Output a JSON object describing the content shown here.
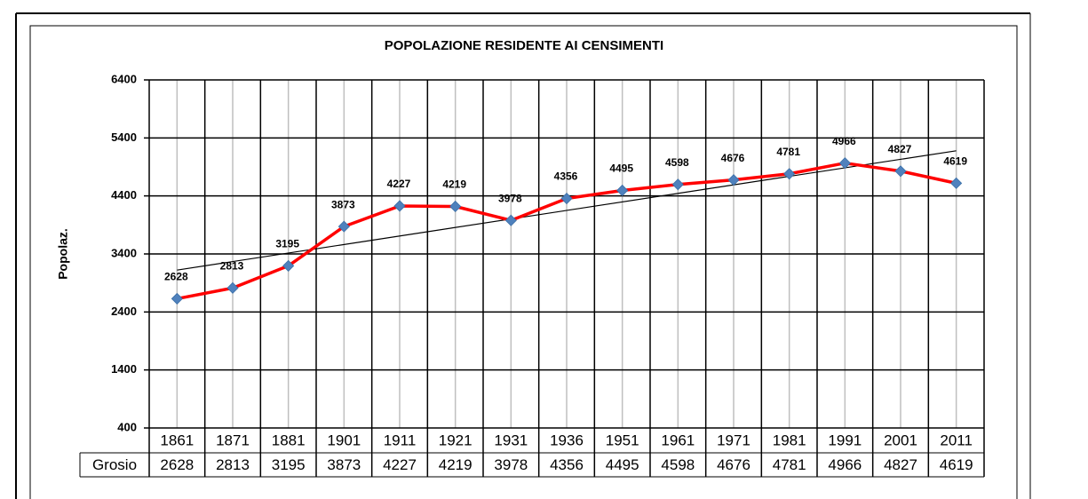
{
  "chart_data": {
    "type": "line",
    "title": "POPOLAZIONE RESIDENTE AI CENSIMENTI",
    "y_label": "Popolaz.",
    "categories": [
      "1861",
      "1871",
      "1881",
      "1901",
      "1911",
      "1921",
      "1931",
      "1936",
      "1951",
      "1961",
      "1971",
      "1981",
      "1991",
      "2001",
      "2011"
    ],
    "series": [
      {
        "name": "Grosio",
        "color": "#ff0000",
        "marker_color": "#4f81bd",
        "values": [
          2628,
          2813,
          3195,
          3873,
          4227,
          4219,
          3978,
          4356,
          4495,
          4598,
          4676,
          4781,
          4966,
          4827,
          4619
        ]
      }
    ],
    "ylim": [
      400,
      6400
    ],
    "yticks": [
      400,
      1400,
      2400,
      3400,
      4400,
      5400,
      6400
    ],
    "grid": true,
    "trendline": "linear",
    "data_table": true
  }
}
